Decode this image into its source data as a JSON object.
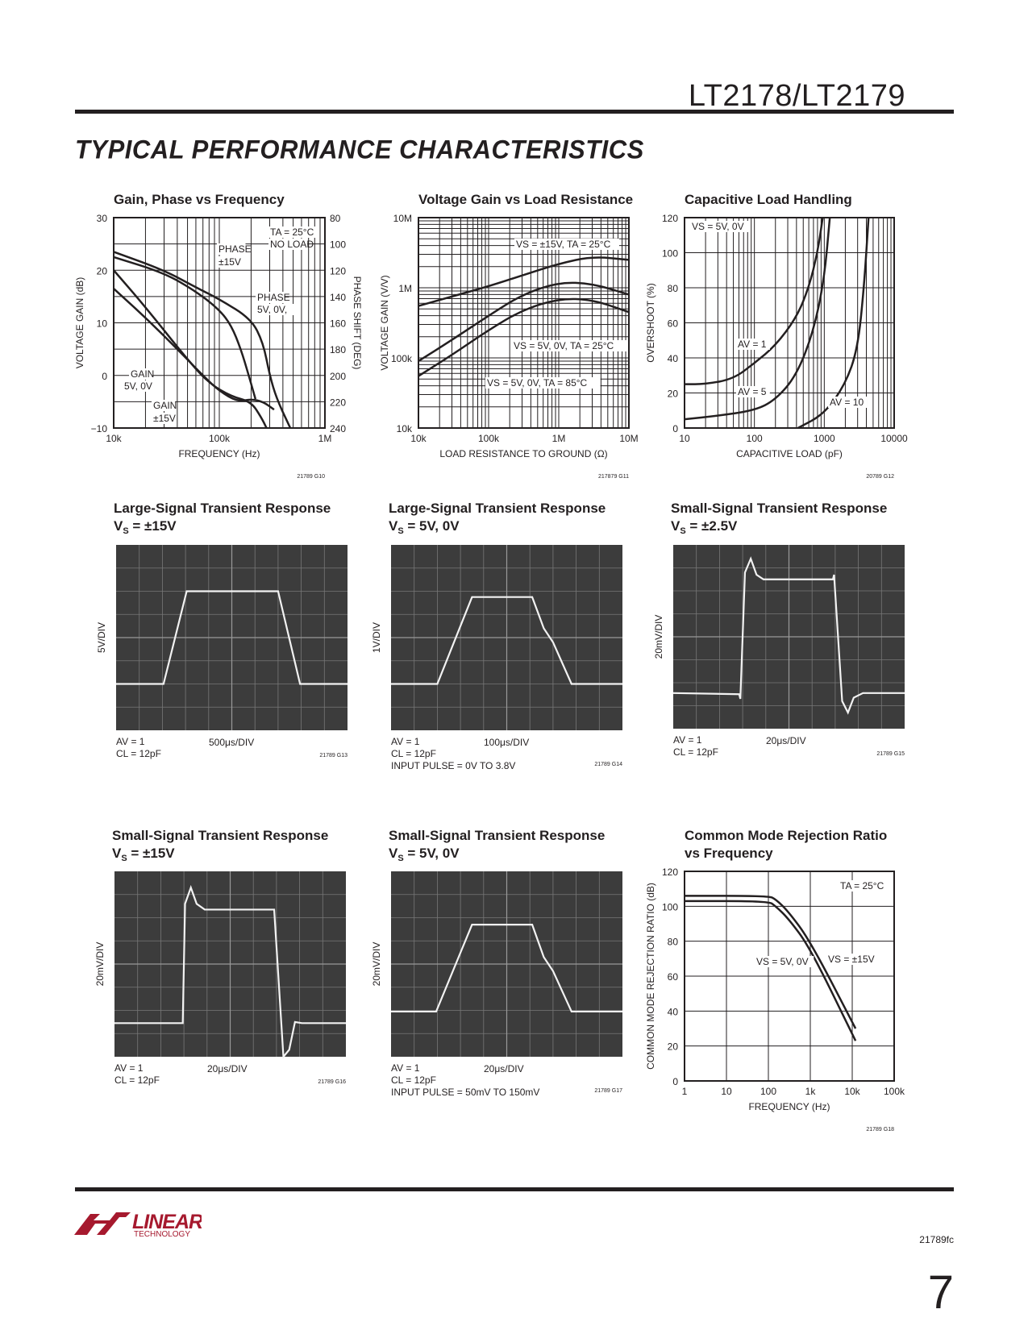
{
  "header": {
    "part": "LT2178/LT2179",
    "section": "TYPICAL PERFORMANCE CHARACTERISTICS"
  },
  "footer": {
    "doc": "21789fc",
    "page": "7",
    "logo_text": "LINEAR TECHNOLOGY"
  },
  "charts": [
    {
      "id": "c1",
      "title": "Gain, Phase vs Frequency",
      "xlabel": "FREQUENCY (Hz)",
      "ylabel": "VOLTAGE GAIN (dB)",
      "y2label": "PHASE SHIFT (DEG)",
      "fig": "21789 G10",
      "xscale": "log",
      "xlim": [
        10000,
        1000000
      ],
      "ylim": [
        -10,
        30
      ],
      "y2lim": [
        240,
        80
      ],
      "xticks": [
        "10k",
        "100k",
        "1M"
      ],
      "yticks": [
        "30",
        "20",
        "10",
        "0",
        "−10"
      ],
      "y2ticks": [
        "80",
        "100",
        "120",
        "140",
        "160",
        "180",
        "200",
        "220",
        "240"
      ],
      "annotations": [
        "TA = 25°C",
        "NO LOAD",
        "PHASE",
        "±15V",
        "PHASE",
        "5V, 0V,",
        "GAIN",
        "5V, 0V",
        "GAIN",
        "±15V"
      ],
      "series": [
        {
          "name": "GAIN ±15V",
          "axis": "left",
          "x": [
            10000,
            20000,
            50000,
            80000,
            130000,
            200000,
            250000,
            280000
          ],
          "y": [
            20,
            13,
            3,
            -1.5,
            -4,
            -5,
            -8,
            -10
          ]
        },
        {
          "name": "GAIN 5V, 0V",
          "axis": "left",
          "x": [
            10000,
            20000,
            40000,
            70000,
            100000,
            150000,
            200000,
            260000,
            330000
          ],
          "y": [
            16.5,
            11,
            5,
            0,
            -3,
            -5,
            -4.5,
            -5,
            -6.5
          ]
        },
        {
          "name": "PHASE ±15V",
          "axis": "right",
          "x": [
            10000,
            30000,
            60000,
            100000,
            200000,
            260000,
            300000,
            350000,
            470000
          ],
          "y": [
            106,
            120,
            133,
            142,
            157,
            175,
            200,
            218,
            240
          ]
        },
        {
          "name": "PHASE 5V, 0V",
          "axis": "right",
          "x": [
            10000,
            30000,
            60000,
            100000,
            130000,
            160000,
            190000,
            220000
          ],
          "y": [
            110,
            122,
            136,
            150,
            162,
            180,
            200,
            218
          ]
        }
      ]
    },
    {
      "id": "c2",
      "title": "Voltage Gain vs Load Resistance",
      "xlabel": "LOAD RESISTANCE TO GROUND (Ω)",
      "ylabel": "VOLTAGE GAIN (V/V)",
      "fig": "217879 G11",
      "xscale": "log",
      "yscale": "log",
      "xlim": [
        10000,
        10000000
      ],
      "ylim": [
        10000,
        10000000
      ],
      "xticks": [
        "10k",
        "100k",
        "1M",
        "10M"
      ],
      "yticks": [
        "10M",
        "1M",
        "100k",
        "10k"
      ],
      "annotations": [
        "VS = ±15V, TA = 25°C",
        "VS = 5V, 0V, TA = 25°C",
        "VS = 5V, 0V, TA = 85°C"
      ],
      "series": [
        {
          "name": "VS = ±15V, TA = 25°C",
          "x": [
            10000,
            30000,
            100000,
            300000,
            1000000,
            3000000,
            10000000
          ],
          "y": [
            550000,
            750000,
            1050000,
            1500000,
            2200000,
            2800000,
            2500000
          ]
        },
        {
          "name": "VS = 5V, 0V, TA = 25°C",
          "x": [
            10000,
            30000,
            100000,
            300000,
            1000000,
            3000000,
            10000000
          ],
          "y": [
            90000,
            180000,
            400000,
            800000,
            1200000,
            1150000,
            800000
          ]
        },
        {
          "name": "VS = 5V, 0V, TA = 85°C",
          "x": [
            10000,
            30000,
            100000,
            300000,
            1000000,
            3000000,
            10000000
          ],
          "y": [
            55000,
            110000,
            250000,
            480000,
            700000,
            680000,
            450000
          ]
        }
      ]
    },
    {
      "id": "c3",
      "title": "Capacitive Load Handling",
      "xlabel": "CAPACITIVE LOAD (pF)",
      "ylabel": "OVERSHOOT (%)",
      "fig": "20789 G12",
      "xscale": "log",
      "xlim": [
        10,
        10000
      ],
      "ylim": [
        0,
        120
      ],
      "xticks": [
        "10",
        "100",
        "1000",
        "10000"
      ],
      "yticks": [
        "120",
        "100",
        "80",
        "60",
        "40",
        "20",
        "0"
      ],
      "annotations": [
        "VS = 5V, 0V",
        "AV = 1",
        "AV = 5",
        "AV = 10"
      ],
      "series": [
        {
          "name": "AV = 1",
          "x": [
            10,
            20,
            50,
            100,
            200,
            400,
            600,
            800,
            950
          ],
          "y": [
            25,
            25,
            28,
            37,
            47,
            63,
            80,
            100,
            120
          ]
        },
        {
          "name": "AV = 5",
          "x": [
            10,
            30,
            100,
            200,
            400,
            700,
            1000,
            1200
          ],
          "y": [
            5,
            7,
            10,
            16,
            30,
            55,
            85,
            120
          ]
        },
        {
          "name": "AV = 10",
          "x": [
            420,
            1000,
            2000,
            3000,
            3700,
            4300
          ],
          "y": [
            0,
            8,
            25,
            45,
            80,
            120
          ]
        }
      ]
    },
    {
      "id": "c9",
      "title": "Common Mode Rejection Ratio",
      "title2": "vs Frequency",
      "xlabel": "FREQUENCY (Hz)",
      "ylabel": "COMMON MODE REJECTION RATIO (dB)",
      "fig": "21789 G18",
      "xscale": "log",
      "xlim": [
        1,
        100000
      ],
      "ylim": [
        0,
        120
      ],
      "xticks": [
        "1",
        "10",
        "100",
        "1k",
        "10k",
        "100k"
      ],
      "yticks": [
        "120",
        "100",
        "80",
        "60",
        "40",
        "20",
        "0"
      ],
      "annotations": [
        "TA = 25°C",
        "VS = 5V, 0V",
        "VS = ±15V"
      ],
      "series": [
        {
          "name": "VS = ±15V",
          "x": [
            1,
            100,
            150,
            300,
            1000,
            12000
          ],
          "y": [
            106,
            106,
            104,
            97,
            80,
            30
          ]
        },
        {
          "name": "VS = 5V, 0V",
          "x": [
            1,
            100,
            150,
            300,
            1000,
            12000
          ],
          "y": [
            103,
            103,
            100,
            93,
            76,
            23
          ]
        }
      ]
    }
  ],
  "scopes": [
    {
      "id": "s1",
      "title": "Large-Signal Transient Response",
      "vs": "±15V",
      "vdiv": "5V/DIV",
      "av": "AV = 1",
      "cl": "CL = 12pF",
      "tdiv": "500μs/DIV",
      "extra": "",
      "fig": "21789 G13",
      "trace": [
        [
          0,
          2
        ],
        [
          2.05,
          2
        ],
        [
          3.05,
          6
        ],
        [
          7,
          6
        ],
        [
          7.95,
          2
        ],
        [
          10,
          2
        ]
      ]
    },
    {
      "id": "s2",
      "title": "Large-Signal Transient Response",
      "vs": "5V, 0V",
      "vdiv": "1V/DIV",
      "av": "AV = 1",
      "cl": "CL = 12pF",
      "tdiv": "100μs/DIV",
      "extra": "INPUT PULSE = 0V TO 3.8V",
      "fig": "21789 G14",
      "trace": [
        [
          0,
          2
        ],
        [
          2,
          2
        ],
        [
          3.5,
          5.75
        ],
        [
          6.1,
          5.75
        ],
        [
          6.6,
          4.4
        ],
        [
          7.0,
          3.8
        ],
        [
          7.8,
          2
        ],
        [
          10,
          2
        ]
      ]
    },
    {
      "id": "s3",
      "title": "Small-Signal Transient Response",
      "vs": "±2.5V",
      "vdiv": "20mV/DIV",
      "av": "AV = 1",
      "cl": "CL = 12pF",
      "tdiv": "20μs/DIV",
      "extra": "",
      "fig": "21789 G15",
      "trace": [
        [
          0,
          1.55
        ],
        [
          2.85,
          1.5
        ],
        [
          2.9,
          1.3
        ],
        [
          3.1,
          6.8
        ],
        [
          3.35,
          7.4
        ],
        [
          3.6,
          6.7
        ],
        [
          3.9,
          6.5
        ],
        [
          6.9,
          6.5
        ],
        [
          6.95,
          6.7
        ],
        [
          7.3,
          1.2
        ],
        [
          7.55,
          0.7
        ],
        [
          7.8,
          1.35
        ],
        [
          8.2,
          1.55
        ],
        [
          10,
          1.55
        ]
      ]
    },
    {
      "id": "s4",
      "title": "Small-Signal Transient Response",
      "vs": "±15V",
      "vdiv": "20mV/DIV",
      "av": "AV = 1",
      "cl": "CL = 12pF",
      "tdiv": "20μs/DIV",
      "extra": "",
      "fig": "21789 G16",
      "trace": [
        [
          0,
          1.45
        ],
        [
          2.95,
          1.45
        ],
        [
          3.05,
          6.6
        ],
        [
          3.3,
          7.3
        ],
        [
          3.55,
          6.6
        ],
        [
          3.9,
          6.35
        ],
        [
          6.9,
          6.35
        ],
        [
          7.3,
          0
        ],
        [
          7.55,
          0.3
        ],
        [
          7.8,
          1.5
        ],
        [
          8.1,
          1.45
        ],
        [
          10,
          1.45
        ]
      ]
    },
    {
      "id": "s5",
      "title": "Small-Signal Transient Response",
      "vs": "5V, 0V",
      "vdiv": "20mV/DIV",
      "av": "AV = 1",
      "cl": "CL = 12pF",
      "tdiv": "20μs/DIV",
      "extra": "INPUT PULSE = 50mV TO 150mV",
      "fig": "21789 G17",
      "trace": [
        [
          0,
          1.95
        ],
        [
          1.95,
          1.95
        ],
        [
          3.5,
          5.7
        ],
        [
          6.1,
          5.7
        ],
        [
          6.6,
          4.3
        ],
        [
          7.0,
          3.7
        ],
        [
          7.8,
          1.95
        ],
        [
          10,
          1.95
        ]
      ]
    }
  ],
  "colors": {
    "ink": "#231f20",
    "scope_bg": "#3c3c3c",
    "scope_trace": "#f2f2f2",
    "logo_red": "#a6192e"
  }
}
